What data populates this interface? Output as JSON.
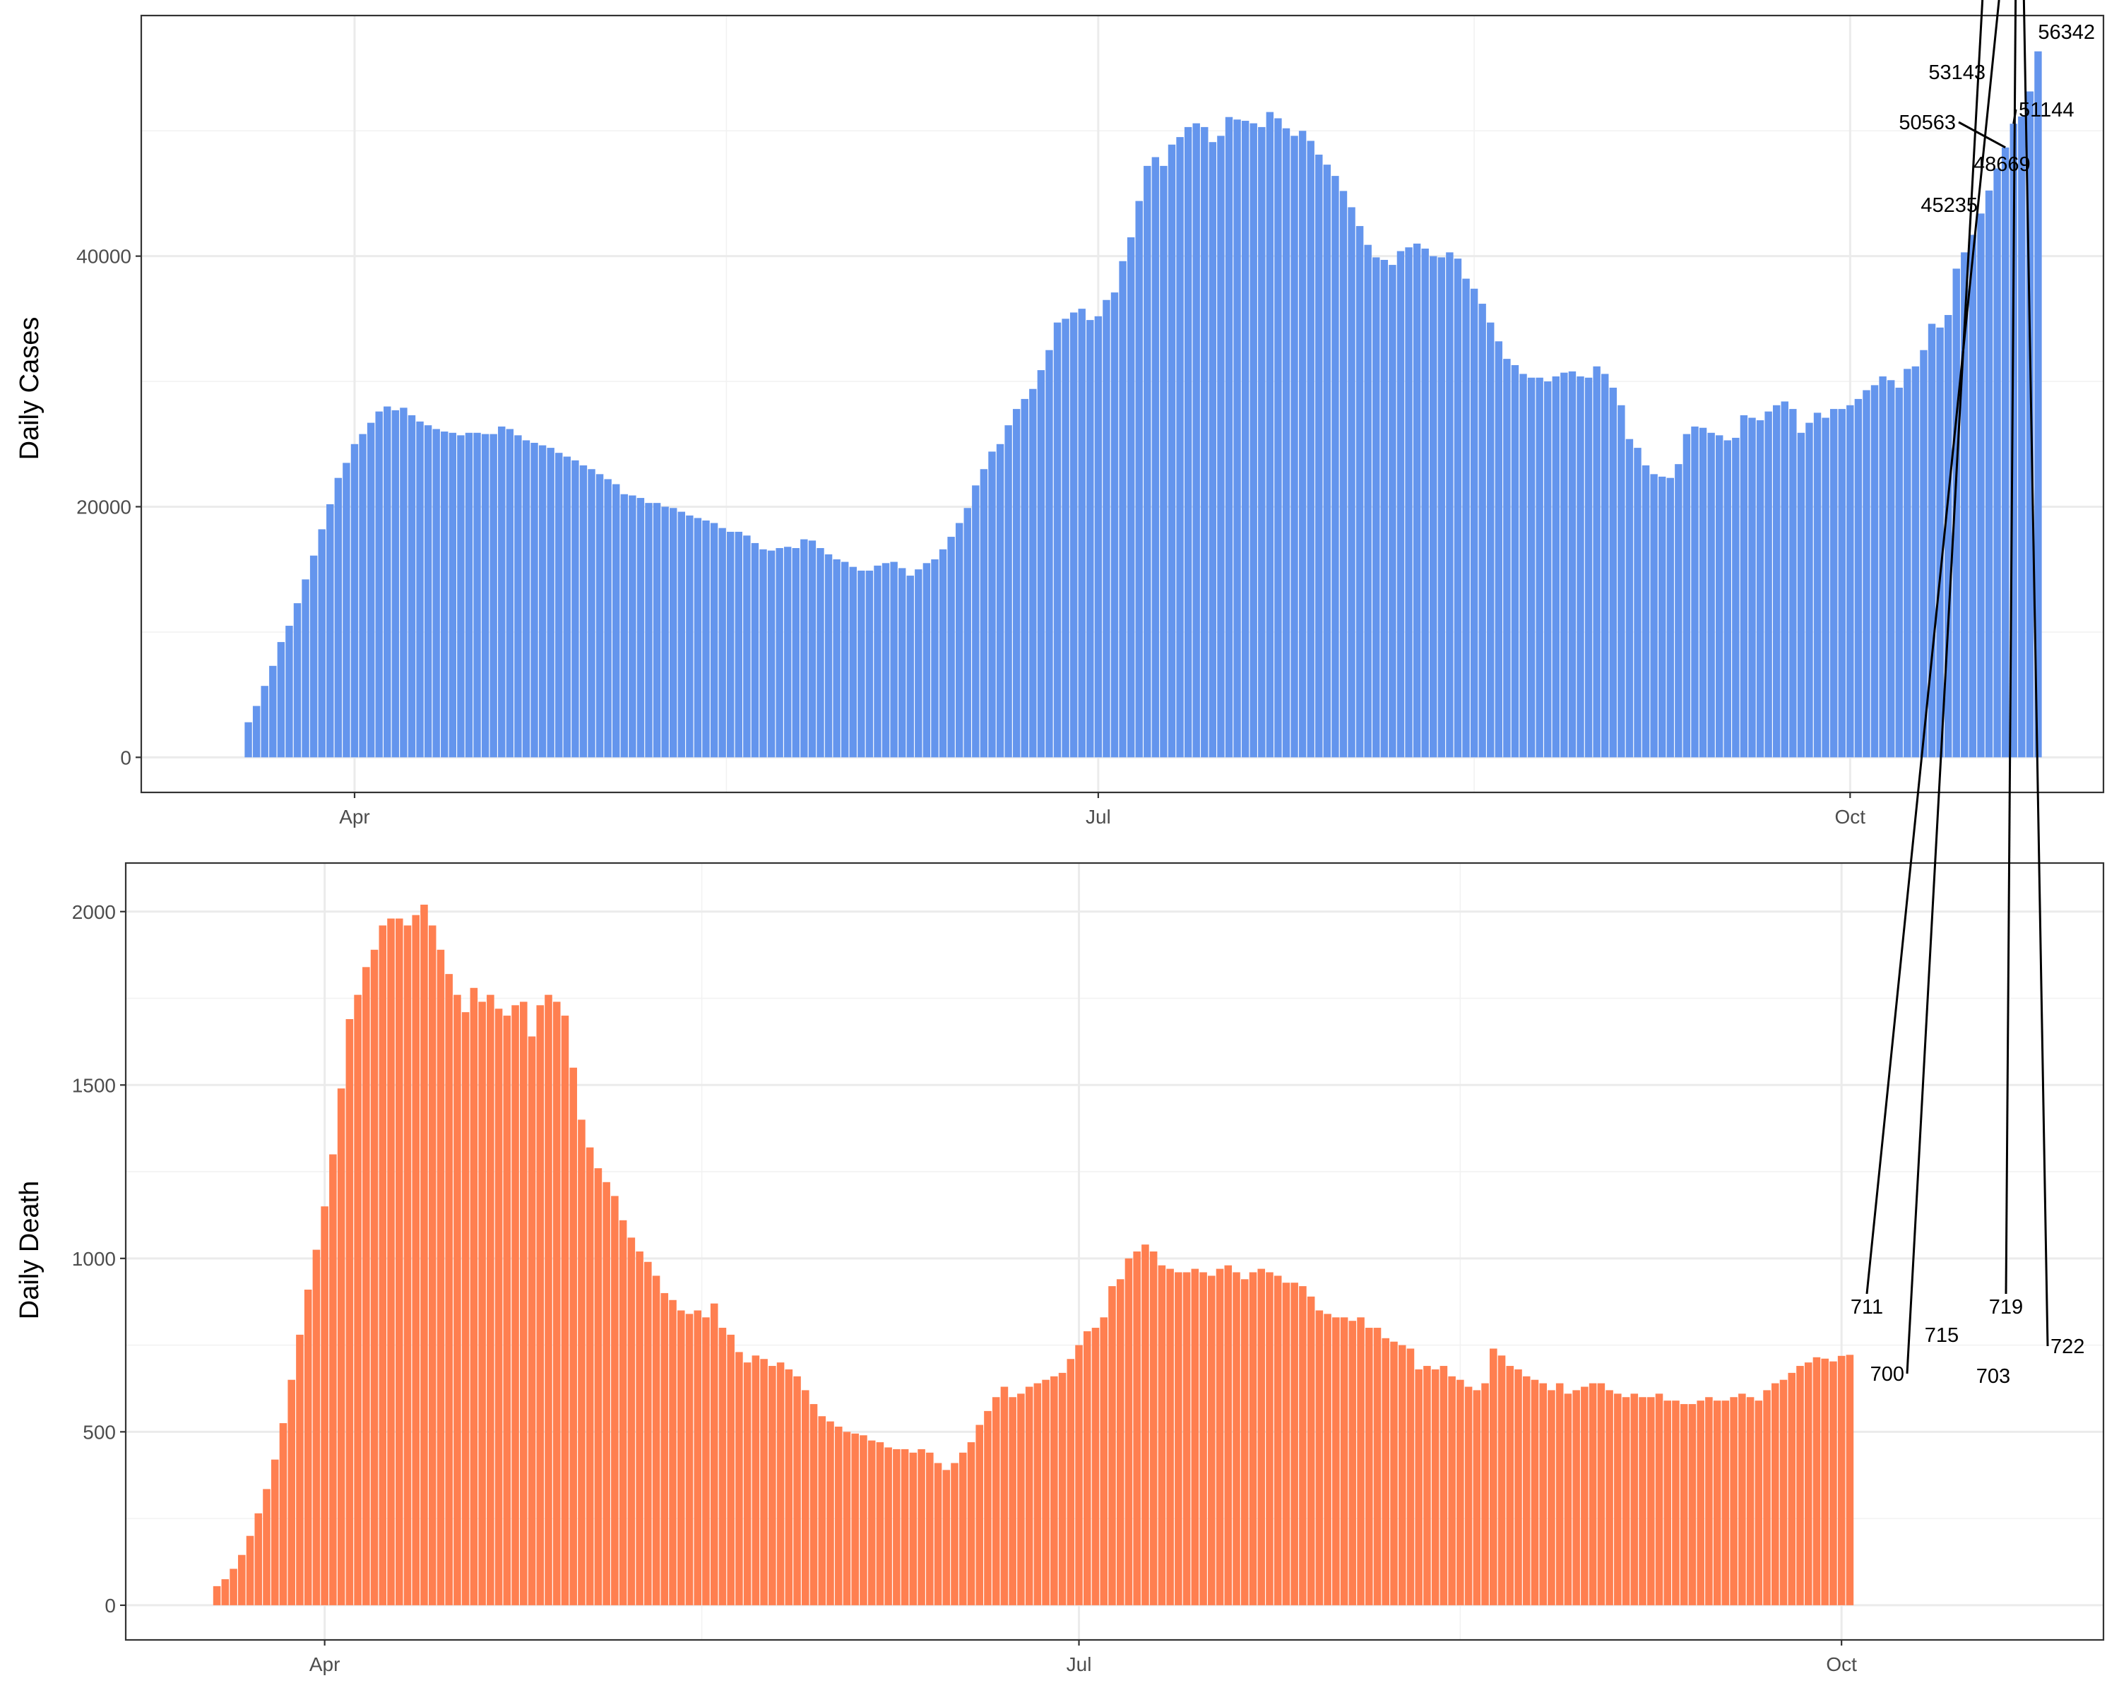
{
  "colors": {
    "cases_bar": "#6495ED",
    "death_bar": "#FF7F50",
    "grid_major": "#EBEBEB",
    "grid_minor": "#F2F2F2",
    "panel_border": "#333333"
  },
  "chart_data": [
    {
      "type": "bar",
      "ylabel": "Daily Cases",
      "xlabel": "",
      "x_ticks": [
        {
          "label": "Apr",
          "day": 13
        },
        {
          "label": "Jul",
          "day": 104
        },
        {
          "label": "Oct",
          "day": 196
        }
      ],
      "y_ticks": [
        0,
        20000,
        40000
      ],
      "ylim": [
        -2800,
        59200
      ],
      "xlim": [
        -13.1,
        227.0
      ],
      "grid": true,
      "x_start_date": "2020-03-20",
      "values": [
        2800,
        4100,
        5700,
        7300,
        9200,
        10500,
        12300,
        14200,
        16100,
        18200,
        20200,
        22300,
        23500,
        25000,
        25800,
        26700,
        27600,
        28000,
        27700,
        27900,
        27300,
        26800,
        26500,
        26200,
        26000,
        25900,
        25700,
        25900,
        25900,
        25800,
        25800,
        26400,
        26200,
        25700,
        25300,
        25100,
        24900,
        24700,
        24300,
        24000,
        23700,
        23300,
        23000,
        22600,
        22200,
        21800,
        21000,
        20900,
        20700,
        20300,
        20300,
        20000,
        19900,
        19600,
        19300,
        19100,
        18900,
        18700,
        18300,
        18000,
        18000,
        17700,
        17100,
        16600,
        16500,
        16700,
        16800,
        16700,
        17400,
        17300,
        16700,
        16200,
        15800,
        15600,
        15200,
        14900,
        14900,
        15300,
        15500,
        15600,
        15100,
        14500,
        15000,
        15500,
        15800,
        16600,
        17600,
        18700,
        19900,
        21700,
        23000,
        24400,
        25000,
        26500,
        27800,
        28600,
        29400,
        30900,
        32500,
        34700,
        35000,
        35500,
        35800,
        34900,
        35200,
        36500,
        37100,
        39600,
        41500,
        44400,
        47200,
        47900,
        47200,
        48900,
        49500,
        50300,
        50600,
        50300,
        49100,
        49600,
        51100,
        50900,
        50800,
        50600,
        50300,
        51500,
        51000,
        50200,
        49600,
        50000,
        49200,
        48100,
        47300,
        46400,
        45200,
        43900,
        42400,
        40900,
        39900,
        39700,
        39300,
        40400,
        40700,
        41000,
        40600,
        40000,
        39900,
        40300,
        39800,
        38200,
        37400,
        36200,
        34700,
        33200,
        31800,
        31300,
        30600,
        30300,
        30300,
        30000,
        30400,
        30700,
        30800,
        30400,
        30300,
        31200,
        30600,
        29500,
        28100,
        25400,
        24700,
        23300,
        22600,
        22400,
        22300,
        23400,
        25800,
        26400,
        26300,
        25900,
        25700,
        25300,
        25500,
        27300,
        27100,
        26900,
        27600,
        28100,
        28400,
        27800,
        25900,
        26700,
        27500,
        27100,
        27800,
        27800,
        28100,
        28600,
        29300,
        29700,
        30400,
        30100,
        29500,
        31000,
        31200,
        32500,
        34600,
        34300,
        35300,
        39000,
        40300,
        41700,
        43400,
        45235,
        47000,
        48669,
        50563,
        51144,
        53143,
        56342
      ],
      "annotations": [
        {
          "label": "56342",
          "day": 218
        },
        {
          "label": "53143",
          "day": 217
        },
        {
          "label": "51144",
          "day": 216
        },
        {
          "label": "50563",
          "day": 215
        },
        {
          "label": "48669",
          "day": 214
        },
        {
          "label": "45235",
          "day": 212
        }
      ]
    },
    {
      "type": "bar",
      "ylabel": "Daily Death",
      "xlabel": "",
      "x_ticks": [
        {
          "label": "Apr",
          "day": 13
        },
        {
          "label": "Jul",
          "day": 104
        },
        {
          "label": "Oct",
          "day": 196
        }
      ],
      "y_ticks": [
        0,
        500,
        1000,
        1500,
        2000
      ],
      "ylim": [
        -100,
        2140
      ],
      "xlim": [
        -11.0,
        227.6
      ],
      "grid": true,
      "x_start_date": "2020-03-20",
      "values": [
        55,
        75,
        105,
        145,
        200,
        265,
        335,
        420,
        525,
        650,
        780,
        910,
        1025,
        1150,
        1300,
        1490,
        1690,
        1760,
        1840,
        1890,
        1960,
        1980,
        1980,
        1960,
        1990,
        2020,
        1960,
        1890,
        1820,
        1760,
        1710,
        1780,
        1740,
        1760,
        1720,
        1700,
        1730,
        1740,
        1640,
        1730,
        1760,
        1740,
        1700,
        1550,
        1400,
        1320,
        1260,
        1220,
        1180,
        1110,
        1060,
        1020,
        990,
        950,
        900,
        880,
        850,
        840,
        850,
        830,
        870,
        800,
        780,
        730,
        700,
        720,
        710,
        690,
        700,
        680,
        660,
        620,
        580,
        545,
        530,
        515,
        500,
        495,
        490,
        475,
        470,
        455,
        450,
        450,
        440,
        450,
        440,
        410,
        390,
        410,
        440,
        470,
        520,
        560,
        600,
        630,
        600,
        610,
        630,
        640,
        650,
        660,
        670,
        710,
        750,
        790,
        800,
        830,
        920,
        940,
        1000,
        1020,
        1040,
        1020,
        980,
        970,
        960,
        960,
        970,
        960,
        950,
        970,
        980,
        960,
        940,
        960,
        970,
        960,
        950,
        930,
        930,
        920,
        890,
        850,
        840,
        830,
        830,
        820,
        830,
        800,
        800,
        770,
        760,
        750,
        740,
        680,
        690,
        680,
        690,
        660,
        650,
        630,
        620,
        640,
        740,
        720,
        690,
        680,
        660,
        650,
        640,
        620,
        640,
        610,
        620,
        630,
        640,
        640,
        620,
        610,
        600,
        610,
        600,
        600,
        610,
        590,
        590,
        580,
        580,
        590,
        600,
        590,
        590,
        600,
        610,
        600,
        590,
        620,
        640,
        650,
        670,
        690,
        700,
        715,
        711,
        703,
        719,
        722
      ],
      "annotations": [
        {
          "label": "722",
          "day": 218
        },
        {
          "label": "719",
          "day": 217
        },
        {
          "label": "703",
          "day": 216
        },
        {
          "label": "711",
          "day": 215
        },
        {
          "label": "715",
          "day": 214
        },
        {
          "label": "700",
          "day": 213
        }
      ]
    }
  ]
}
